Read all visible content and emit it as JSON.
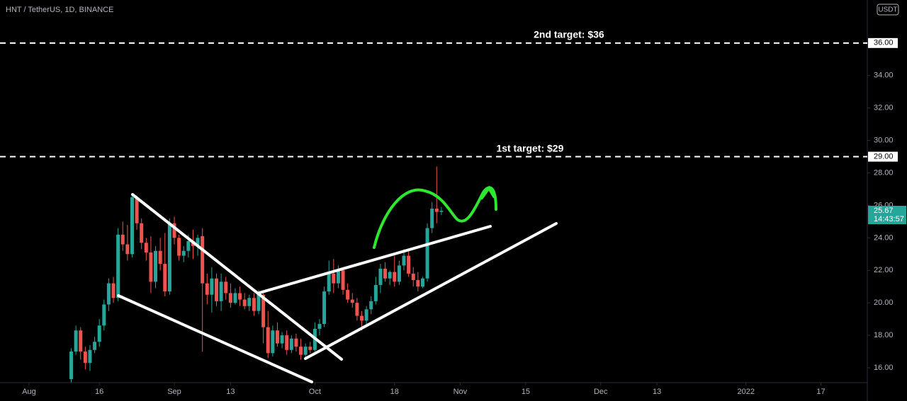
{
  "chart_data": {
    "type": "candlestick",
    "title": "HNT / TetherUS, 1D, BINANCE",
    "currency": "USDT",
    "up_color": "#26a69a",
    "down_color": "#ef5350",
    "xlim": [
      -6.2,
      178.9
    ],
    "ylim": [
      15.13,
      38.65
    ],
    "xticks": [
      {
        "value": 0,
        "label": "Aug"
      },
      {
        "value": 15,
        "label": "16"
      },
      {
        "value": 31,
        "label": "Sep"
      },
      {
        "value": 43,
        "label": "13"
      },
      {
        "value": 61,
        "label": "Oct"
      },
      {
        "value": 78,
        "label": "18"
      },
      {
        "value": 92,
        "label": "Nov"
      },
      {
        "value": 106,
        "label": "15"
      },
      {
        "value": 122,
        "label": "Dec"
      },
      {
        "value": 134,
        "label": "13"
      },
      {
        "value": 153,
        "label": "2022"
      },
      {
        "value": 169,
        "label": "17"
      }
    ],
    "yticks": [
      {
        "value": 16,
        "label": "16.00"
      },
      {
        "value": 18,
        "label": "18.00"
      },
      {
        "value": 20,
        "label": "20.00"
      },
      {
        "value": 22,
        "label": "22.00"
      },
      {
        "value": 24,
        "label": "24.00"
      },
      {
        "value": 26,
        "label": "26.00"
      },
      {
        "value": 28,
        "label": "28.00"
      },
      {
        "value": 30,
        "label": "30.00"
      },
      {
        "value": 32,
        "label": "32.00"
      },
      {
        "value": 34,
        "label": "34.00"
      }
    ],
    "levels": [
      {
        "value": 36,
        "label": "36.00",
        "text": "2nd target: $36"
      },
      {
        "value": 29,
        "label": "29.00",
        "text": "1st target: $29"
      }
    ],
    "last_price": 25.67,
    "countdown": "14:43:57",
    "x": [
      9,
      10,
      11,
      12,
      13,
      14,
      15,
      16,
      17,
      18,
      19,
      20,
      21,
      22,
      23,
      24,
      25,
      26,
      27,
      28,
      29,
      30,
      31,
      32,
      33,
      34,
      35,
      36,
      37,
      38,
      39,
      40,
      41,
      42,
      43,
      44,
      45,
      46,
      47,
      48,
      49,
      50,
      51,
      52,
      53,
      54,
      55,
      56,
      57,
      58,
      59,
      60,
      61,
      62,
      63,
      64,
      65,
      66,
      67,
      68,
      69,
      70,
      71,
      72,
      73,
      74,
      75,
      76,
      77,
      78,
      79,
      80,
      81,
      82,
      83,
      84,
      85,
      86,
      87,
      88
    ],
    "ohlc": [
      [
        15.3,
        17.2,
        15.1,
        17.0
      ],
      [
        17.0,
        18.6,
        16.8,
        18.3
      ],
      [
        18.3,
        18.5,
        16.5,
        17.0
      ],
      [
        17.0,
        17.3,
        15.9,
        16.3
      ],
      [
        16.3,
        17.4,
        15.8,
        17.1
      ],
      [
        17.1,
        17.9,
        16.9,
        17.6
      ],
      [
        17.6,
        19.0,
        17.3,
        18.6
      ],
      [
        18.6,
        20.2,
        18.3,
        19.9
      ],
      [
        19.9,
        21.5,
        19.5,
        21.2
      ],
      [
        21.2,
        21.6,
        20.0,
        20.3
      ],
      [
        20.3,
        24.6,
        20.1,
        24.2
      ],
      [
        24.2,
        25.0,
        23.2,
        23.6
      ],
      [
        23.6,
        24.8,
        22.6,
        23.0
      ],
      [
        23.0,
        26.7,
        22.8,
        26.5
      ],
      [
        26.5,
        26.6,
        24.5,
        24.9
      ],
      [
        24.9,
        25.2,
        23.3,
        23.7
      ],
      [
        23.7,
        24.0,
        22.6,
        23.1
      ],
      [
        23.1,
        24.1,
        20.6,
        21.3
      ],
      [
        21.3,
        23.5,
        20.9,
        23.2
      ],
      [
        23.2,
        24.0,
        22.0,
        22.4
      ],
      [
        22.4,
        24.3,
        20.4,
        20.7
      ],
      [
        20.7,
        25.2,
        20.5,
        24.9
      ],
      [
        24.9,
        25.3,
        23.6,
        24.0
      ],
      [
        24.0,
        24.2,
        22.6,
        22.9
      ],
      [
        22.9,
        23.5,
        22.5,
        23.2
      ],
      [
        23.2,
        24.2,
        22.8,
        23.8
      ],
      [
        23.8,
        24.5,
        22.7,
        23.5
      ],
      [
        23.5,
        24.2,
        22.9,
        24.0
      ],
      [
        24.1,
        24.6,
        17.0,
        21.2
      ],
      [
        21.2,
        21.8,
        19.9,
        20.5
      ],
      [
        20.5,
        22.2,
        19.4,
        21.5
      ],
      [
        21.5,
        21.8,
        19.8,
        20.1
      ],
      [
        20.1,
        21.8,
        19.5,
        21.3
      ],
      [
        21.3,
        21.6,
        20.2,
        20.6
      ],
      [
        20.6,
        21.2,
        19.7,
        20.0
      ],
      [
        20.0,
        20.9,
        19.9,
        20.6
      ],
      [
        20.6,
        21.0,
        19.8,
        20.2
      ],
      [
        20.2,
        20.6,
        19.6,
        19.8
      ],
      [
        19.8,
        20.5,
        19.5,
        20.3
      ],
      [
        20.3,
        20.6,
        19.2,
        19.5
      ],
      [
        19.5,
        20.8,
        19.3,
        20.5
      ],
      [
        20.5,
        20.7,
        17.5,
        18.5
      ],
      [
        18.5,
        19.5,
        16.6,
        16.9
      ],
      [
        16.9,
        18.6,
        16.7,
        18.3
      ],
      [
        18.3,
        18.8,
        17.3,
        17.5
      ],
      [
        17.5,
        18.2,
        17.2,
        18.0
      ],
      [
        18.0,
        18.3,
        16.8,
        17.1
      ],
      [
        17.1,
        18.0,
        16.9,
        17.8
      ],
      [
        17.8,
        18.1,
        17.0,
        17.3
      ],
      [
        17.3,
        17.8,
        16.5,
        16.8
      ],
      [
        16.8,
        17.5,
        16.6,
        17.3
      ],
      [
        17.3,
        17.6,
        16.9,
        17.1
      ],
      [
        17.1,
        18.8,
        17.0,
        18.4
      ],
      [
        18.4,
        19.0,
        18.0,
        18.7
      ],
      [
        18.7,
        21.0,
        18.5,
        20.7
      ],
      [
        20.7,
        22.6,
        20.5,
        21.8
      ],
      [
        21.8,
        22.7,
        20.6,
        21.2
      ],
      [
        21.2,
        22.3,
        20.9,
        22.0
      ],
      [
        22.0,
        22.1,
        20.5,
        20.8
      ],
      [
        20.8,
        21.2,
        20.0,
        20.2
      ],
      [
        20.2,
        20.6,
        19.7,
        20.0
      ],
      [
        20.0,
        20.3,
        18.9,
        19.2
      ],
      [
        19.2,
        19.5,
        18.3,
        18.9
      ],
      [
        18.9,
        19.8,
        18.6,
        19.6
      ],
      [
        19.6,
        20.4,
        19.3,
        20.1
      ],
      [
        20.1,
        21.6,
        19.9,
        21.1
      ],
      [
        21.1,
        22.4,
        20.6,
        22.1
      ],
      [
        22.1,
        22.5,
        21.3,
        21.5
      ],
      [
        21.5,
        22.0,
        21.1,
        21.9
      ],
      [
        21.9,
        22.9,
        21.0,
        21.3
      ],
      [
        21.3,
        22.6,
        21.1,
        22.3
      ],
      [
        22.3,
        23.3,
        22.0,
        22.9
      ],
      [
        22.9,
        23.2,
        21.6,
        21.8
      ],
      [
        21.8,
        22.2,
        21.0,
        21.4
      ],
      [
        21.4,
        21.9,
        20.7,
        21.0
      ],
      [
        21.0,
        21.6,
        20.9,
        21.5
      ],
      [
        21.5,
        24.9,
        21.3,
        24.6
      ],
      [
        24.6,
        26.2,
        24.3,
        25.8
      ],
      [
        25.8,
        28.4,
        24.9,
        25.6
      ],
      [
        25.6,
        25.9,
        25.4,
        25.67
      ]
    ]
  }
}
